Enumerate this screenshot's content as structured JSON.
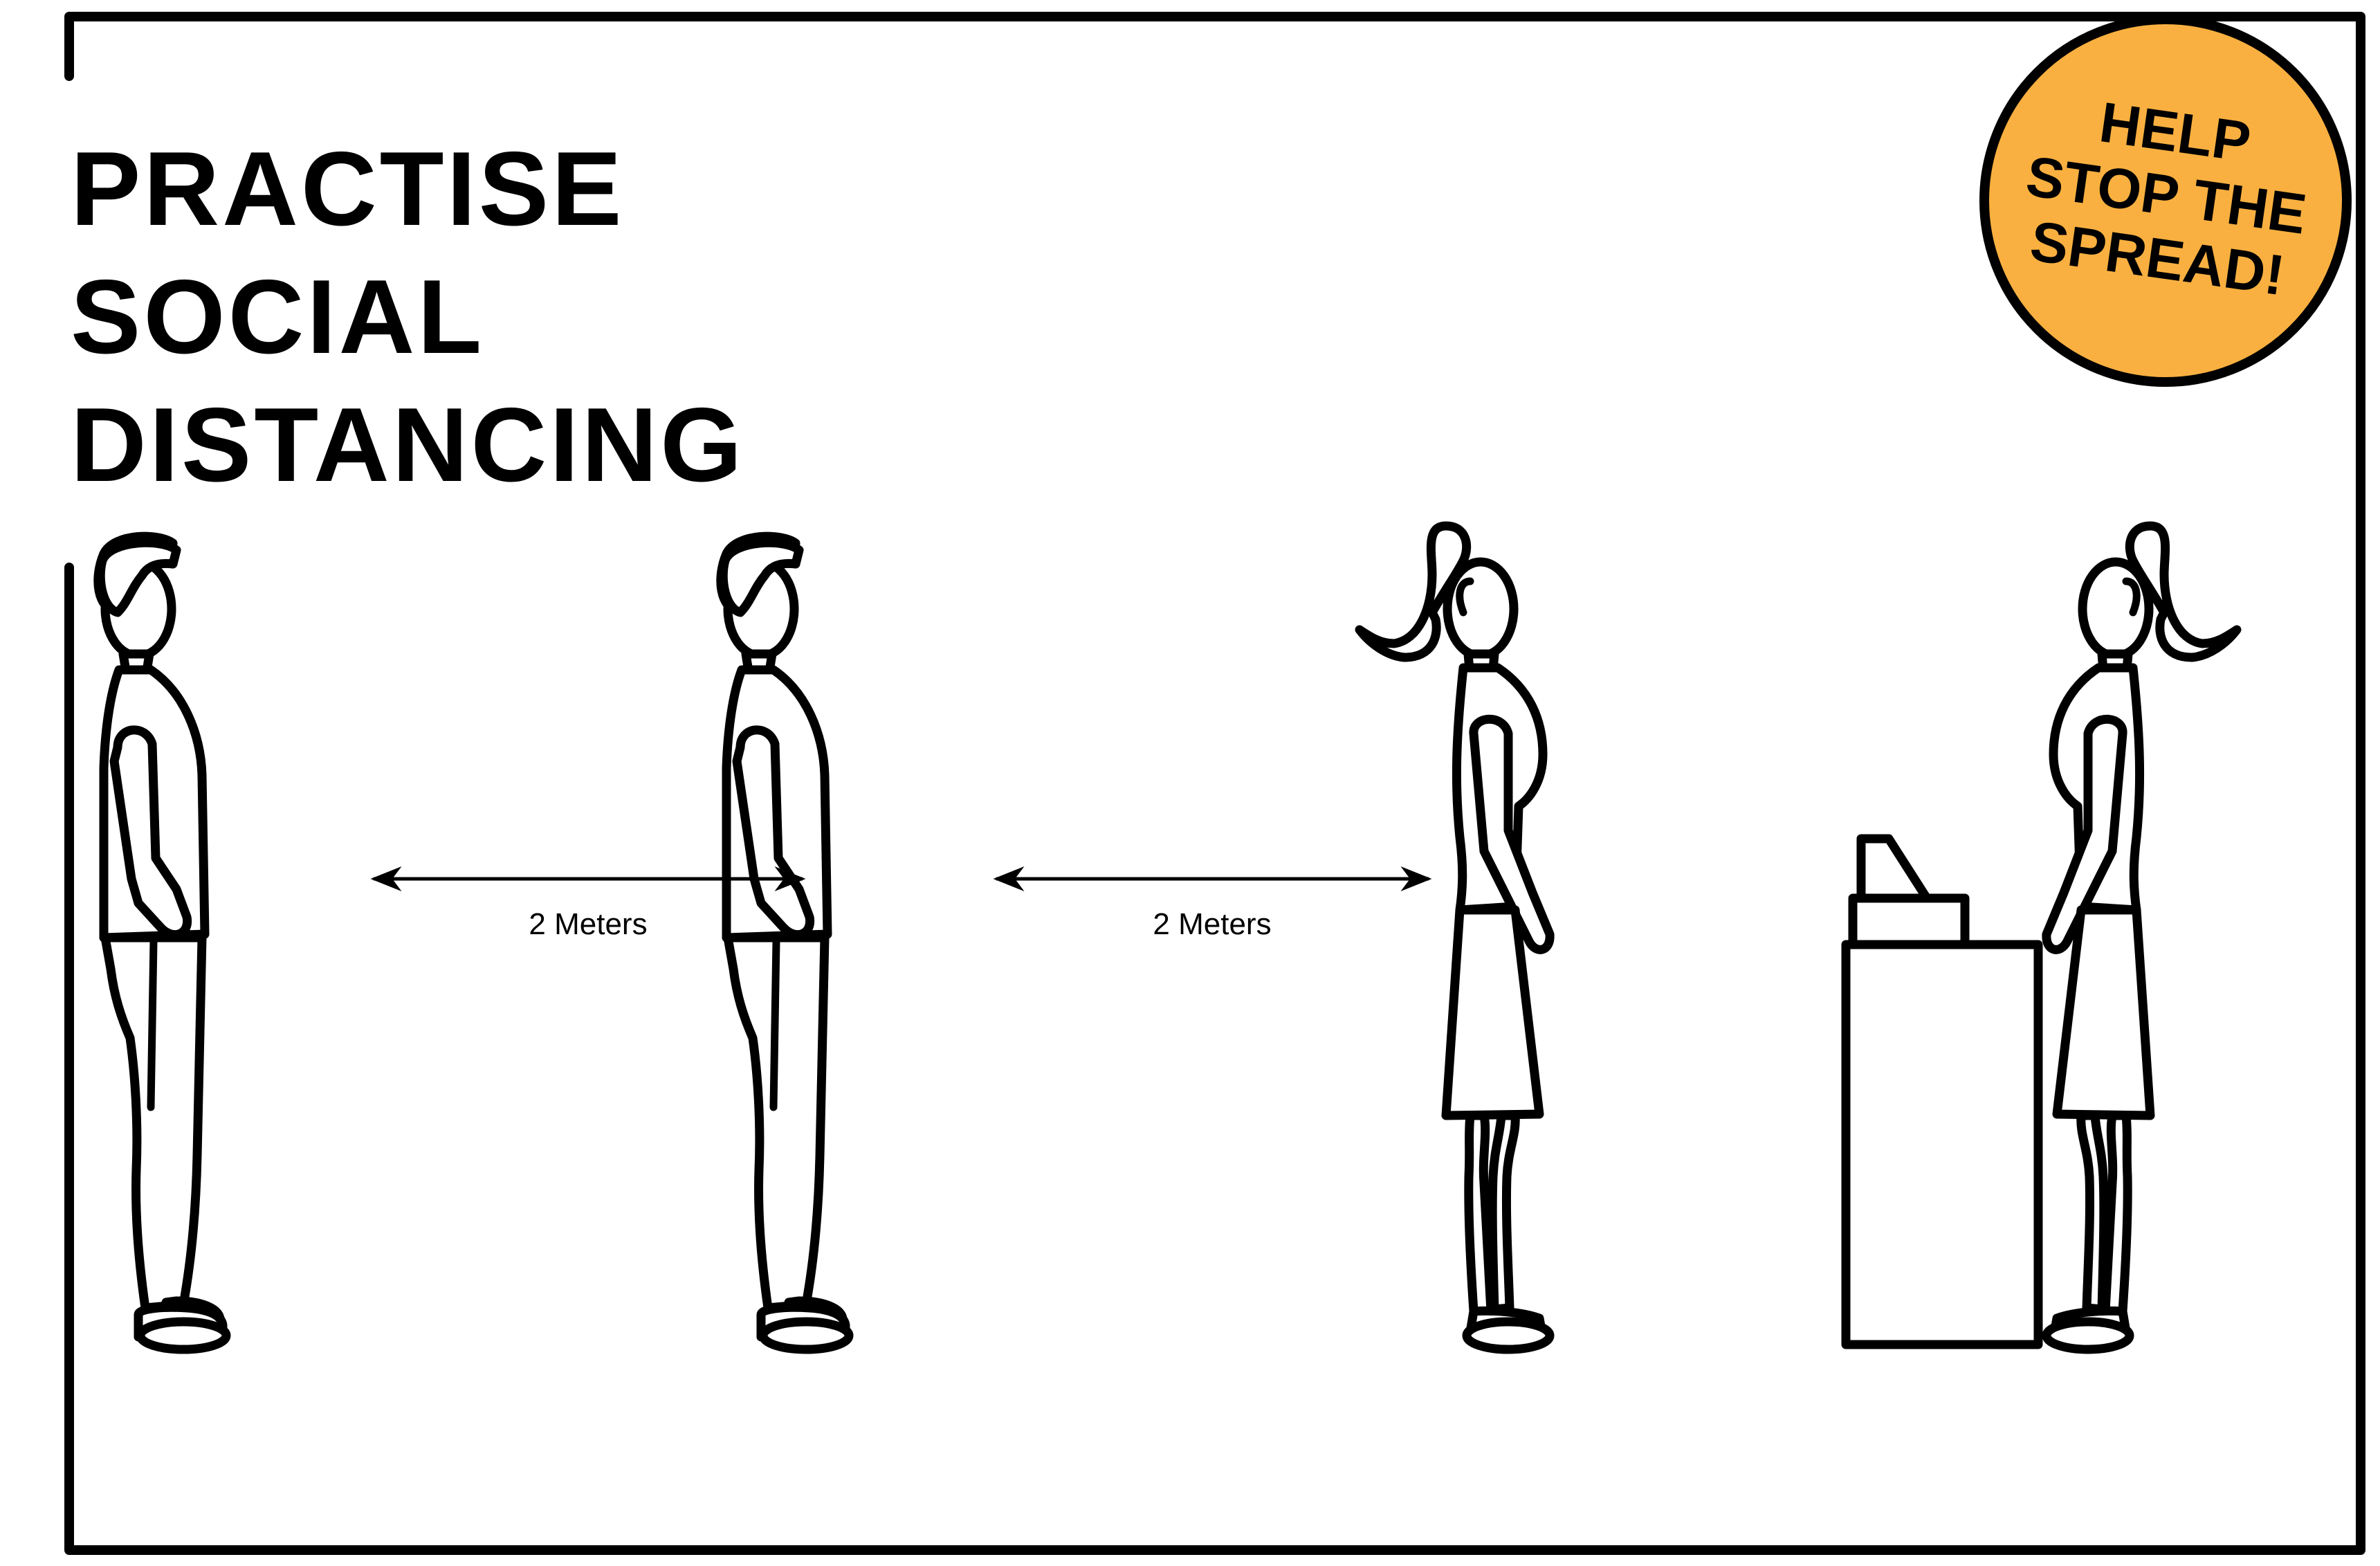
{
  "title": {
    "line1": "PRACTISE",
    "line2": "SOCIAL",
    "line3": "DISTANCING"
  },
  "badge": {
    "line1": "HELP",
    "line2": "STOP THE",
    "line3": "SPREAD!"
  },
  "distances": [
    {
      "label": "2 Meters"
    },
    {
      "label": "2 Meters"
    }
  ],
  "figures": [
    {
      "name": "man-first-in-line"
    },
    {
      "name": "man-second-in-line"
    },
    {
      "name": "woman-third-in-line"
    },
    {
      "name": "cashier-woman"
    }
  ],
  "colors": {
    "frame": "#000000",
    "badge_fill": "#F9B040",
    "background": "#FFFFFF"
  }
}
